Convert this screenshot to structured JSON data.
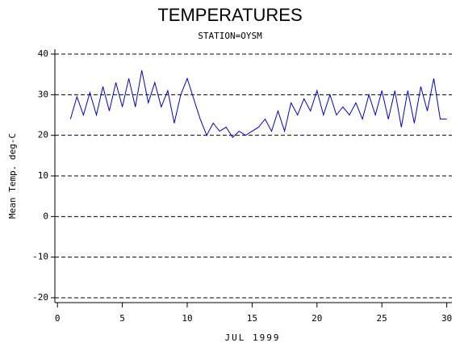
{
  "chart_data": {
    "type": "line",
    "title": "TEMPERATURES",
    "subtitle": "STATION=OYSM",
    "x_label": "JUL 1999",
    "y_label": "Mean Temp. deg-C",
    "xlim": [
      -0.2,
      30.4
    ],
    "ylim": [
      -21.2,
      41.2
    ],
    "xticks": [
      0,
      5,
      10,
      15,
      20,
      25,
      30
    ],
    "yticks": [
      -20,
      -10,
      0,
      10,
      20,
      30,
      40
    ],
    "grid": true,
    "x": [
      1.0,
      1.5,
      2.0,
      2.5,
      3.0,
      3.5,
      4.0,
      4.5,
      5.0,
      5.5,
      6.0,
      6.5,
      7.0,
      7.5,
      8.0,
      8.5,
      9.0,
      9.5,
      10.0,
      10.5,
      11.0,
      11.5,
      12.0,
      12.5,
      13.0,
      13.5,
      14.0,
      14.5,
      15.0,
      15.5,
      16.0,
      16.5,
      17.0,
      17.5,
      18.0,
      18.5,
      19.0,
      19.5,
      20.0,
      20.5,
      21.0,
      21.5,
      22.0,
      22.5,
      23.0,
      23.5,
      24.0,
      24.5,
      25.0,
      25.5,
      26.0,
      26.5,
      27.0,
      27.5,
      28.0,
      28.5,
      29.0,
      29.5,
      30.0
    ],
    "series": [
      {
        "name": "Mean Temp",
        "color": "#0000cc",
        "values": [
          24,
          29.5,
          25,
          30.5,
          25,
          32,
          26,
          33,
          27,
          34,
          27,
          36,
          28,
          33,
          27,
          31,
          23,
          30,
          34,
          29,
          24,
          20,
          23,
          21,
          22,
          19.5,
          21,
          20,
          21,
          22,
          24,
          21,
          26,
          21,
          28,
          25,
          29,
          26,
          31,
          25,
          30,
          25,
          27,
          25,
          28,
          24,
          30,
          25,
          31,
          24,
          31,
          22,
          31,
          23,
          32,
          26,
          34,
          24,
          24
        ]
      }
    ]
  }
}
